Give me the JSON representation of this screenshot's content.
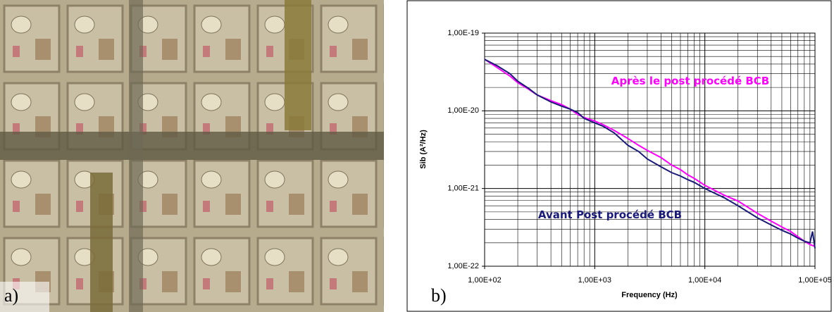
{
  "panel_labels": [
    "a)",
    "b)"
  ],
  "chart_data": {
    "type": "line",
    "y_label": "Sib (A²/Hz)",
    "x_label": "Frequency (Hz)",
    "log_scale": true,
    "grid": true,
    "minor_grid": true,
    "x": [
      100,
      130,
      170,
      200,
      250,
      300,
      400,
      500,
      600,
      700,
      800,
      1000,
      1200,
      1500,
      2000,
      2500,
      3000,
      4000,
      5000,
      6000,
      7000,
      8000,
      10000,
      15000,
      20000,
      30000,
      40000,
      50000,
      60000,
      70000,
      80000,
      90000,
      95000,
      100000
    ],
    "series": [
      {
        "name": "Après le post procédé BCB",
        "color": "#ff00ff",
        "values": [
          4.6e-20,
          3.6e-20,
          2.8e-20,
          2.3e-20,
          1.9e-20,
          1.6e-20,
          1.35e-20,
          1.2e-20,
          1.05e-20,
          9e-21,
          8.2e-21,
          7.4e-21,
          6.6e-21,
          5.6e-21,
          4.4e-21,
          3.6e-21,
          3.1e-21,
          2.5e-21,
          2e-21,
          1.75e-21,
          1.5e-21,
          1.35e-21,
          1.1e-21,
          8.2e-22,
          6.9e-22,
          4.8e-22,
          3.8e-22,
          3.2e-22,
          2.8e-22,
          2.4e-22,
          2.1e-22,
          1.9e-22,
          1.85e-22,
          1.8e-22
        ]
      },
      {
        "name": "Avant Post procédé BCB",
        "color": "#1a1a7a",
        "values": [
          4.6e-20,
          3.8e-20,
          3e-20,
          2.4e-20,
          1.95e-20,
          1.6e-20,
          1.3e-20,
          1.15e-20,
          1.05e-20,
          9.5e-21,
          8e-21,
          7e-21,
          6.3e-21,
          5.2e-21,
          3.6e-21,
          3e-21,
          2.4e-21,
          1.9e-21,
          1.6e-21,
          1.45e-21,
          1.3e-21,
          1.2e-21,
          1e-21,
          7.6e-22,
          6e-22,
          4.2e-22,
          3.4e-22,
          2.9e-22,
          2.6e-22,
          2.3e-22,
          2.1e-22,
          2e-22,
          2.8e-22,
          1.7e-22
        ]
      }
    ],
    "xlim": [
      100,
      100000
    ],
    "ylim": [
      1e-22,
      1e-19
    ],
    "xticks": [
      {
        "value": 100,
        "label": "1,00E+02"
      },
      {
        "value": 1000,
        "label": "1,00E+03"
      },
      {
        "value": 10000,
        "label": "1,00E+04"
      },
      {
        "value": 100000,
        "label": "1,00E+05"
      }
    ],
    "yticks": [
      {
        "value": 1e-22,
        "label": "1,00E-22"
      },
      {
        "value": 1e-21,
        "label": "1,00E-21"
      },
      {
        "value": 1e-20,
        "label": "1,00E-20"
      },
      {
        "value": 1e-19,
        "label": "1,00E-19"
      }
    ]
  }
}
